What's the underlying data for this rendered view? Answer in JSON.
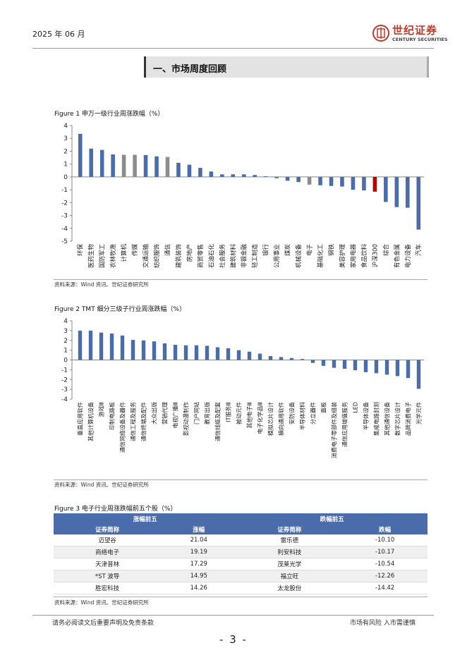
{
  "header": {
    "date": "2025 年 06 月",
    "brand_cn": "世纪证券",
    "brand_en": "CENTURY SECURITIES"
  },
  "section_title": "一、市场周度回顾",
  "figure1": {
    "title": "Figure 1 申万一级行业周涨跌幅（%）",
    "source": "资料来源：Wind 资讯、世纪证券研究所",
    "colors": {
      "default": "#4a6cab",
      "gray": "#8c8c8c",
      "highlight": "#c00000"
    },
    "chart_data": {
      "type": "bar",
      "title": "申万一级行业周涨跌幅（%）",
      "ylim": [
        -5,
        4
      ],
      "yticks": [
        4,
        3,
        2,
        1,
        0,
        -1,
        -2,
        -3,
        -4,
        -5
      ],
      "categories": [
        "环保",
        "医药生物",
        "国防军工",
        "农林牧渔",
        "计算机",
        "传媒",
        "交通运输",
        "纺织服饰",
        "通信",
        "建筑装饰",
        "房地产",
        "商贸零售",
        "石油石化",
        "社会服务",
        "建筑材料",
        "非银金融",
        "轻工制造",
        "银行",
        "公用事业",
        "煤炭",
        "机械设备",
        "电子",
        "基础化工",
        "钢铁",
        "美容护理",
        "家用电器",
        "食品饮料",
        "沪深300",
        "综合",
        "有色金属",
        "电力设备",
        "汽车"
      ],
      "values": [
        3.35,
        2.2,
        2.1,
        1.75,
        1.72,
        1.72,
        1.7,
        1.6,
        1.55,
        1.1,
        0.95,
        0.7,
        0.42,
        0.2,
        0.2,
        0.2,
        0.15,
        0.05,
        -0.1,
        -0.3,
        -0.4,
        -0.6,
        -0.65,
        -0.7,
        -0.75,
        -1.0,
        -1.05,
        -1.15,
        -1.95,
        -2.35,
        -2.4,
        -4.1
      ],
      "bar_colors": [
        "default",
        "default",
        "default",
        "default",
        "gray",
        "gray",
        "default",
        "default",
        "gray",
        "default",
        "default",
        "default",
        "default",
        "default",
        "default",
        "default",
        "default",
        "default",
        "default",
        "default",
        "default",
        "gray",
        "default",
        "default",
        "default",
        "default",
        "default",
        "highlight",
        "default",
        "default",
        "default",
        "default"
      ]
    }
  },
  "figure2": {
    "title": "Figure 2 TMT 细分三级子行业周涨跌幅（%）",
    "source": "资料来源：Wind 资讯、世纪证券研究所",
    "colors": {
      "default": "#4a6cab"
    },
    "chart_data": {
      "type": "bar",
      "title": "TMT 细分三级子行业周涨跌幅（%）",
      "ylim": [
        -4,
        4
      ],
      "yticks": [
        4,
        3,
        2,
        1,
        0,
        -1,
        -2,
        -3,
        -4
      ],
      "categories": [
        "垂直应用软件",
        "其他计算机设备",
        "游戏Ⅲ",
        "印制电路板",
        "通信网络设备及器件",
        "通信工程及服务",
        "通信终端及配件",
        "大众出版",
        "营销代理",
        "电视广播Ⅲ",
        "影视动漫制作",
        "门户网站",
        "教育出版",
        "通信线缆及配套",
        "IT服务Ⅲ",
        "被动元件",
        "其他电子Ⅲ",
        "电子化学品Ⅲ",
        "模拟芯片设计",
        "横向通用软件",
        "安防设备",
        "半导体材料",
        "分立器件",
        "面板",
        "消费电子零部件及组装",
        "通信应用增值服务",
        "LED",
        "半导体设备",
        "集成电路封测",
        "其他通信设备",
        "数字芯片设计",
        "品牌消费电子",
        "光学元件"
      ],
      "values": [
        3.0,
        3.0,
        2.8,
        2.7,
        2.5,
        2.05,
        2.0,
        1.9,
        1.7,
        1.55,
        1.5,
        1.5,
        1.45,
        1.3,
        1.2,
        1.0,
        0.85,
        0.65,
        0.4,
        0.3,
        0.2,
        0.1,
        -0.3,
        -0.6,
        -0.8,
        -0.9,
        -1.05,
        -1.25,
        -1.35,
        -1.5,
        -1.65,
        -1.85,
        -2.95
      ]
    }
  },
  "figure3": {
    "title": "Figure 3 电子行业周涨跌幅前五个股（%）",
    "source": "资料来源：Wind 资讯、世纪证券研究所",
    "top_header": "涨幅前五",
    "bottom_header": "跌幅前五",
    "col_name": "证券简称",
    "col_up": "涨幅",
    "col_down": "跌幅",
    "rows": [
      {
        "up_name": "迈望谷",
        "up_val": "21.04",
        "down_name": "雷乐德",
        "down_val": "-10.10"
      },
      {
        "up_name": "商络电子",
        "up_val": "19.19",
        "down_name": "利安科技",
        "down_val": "-10.17"
      },
      {
        "up_name": "天津普林",
        "up_val": "17.29",
        "down_name": "茂莱光学",
        "down_val": "-10.54"
      },
      {
        "up_name": "*ST 波导",
        "up_val": "14.95",
        "down_name": "福立旺",
        "down_val": "-12.26"
      },
      {
        "up_name": "胜宏科技",
        "up_val": "14.26",
        "down_name": "太龙股份",
        "down_val": "-14.42"
      }
    ]
  },
  "footer": {
    "left": "请务必阅读文后重要声明及免责条款",
    "right": "市场有风险 入市需谨慎",
    "page": "- 3 -"
  }
}
